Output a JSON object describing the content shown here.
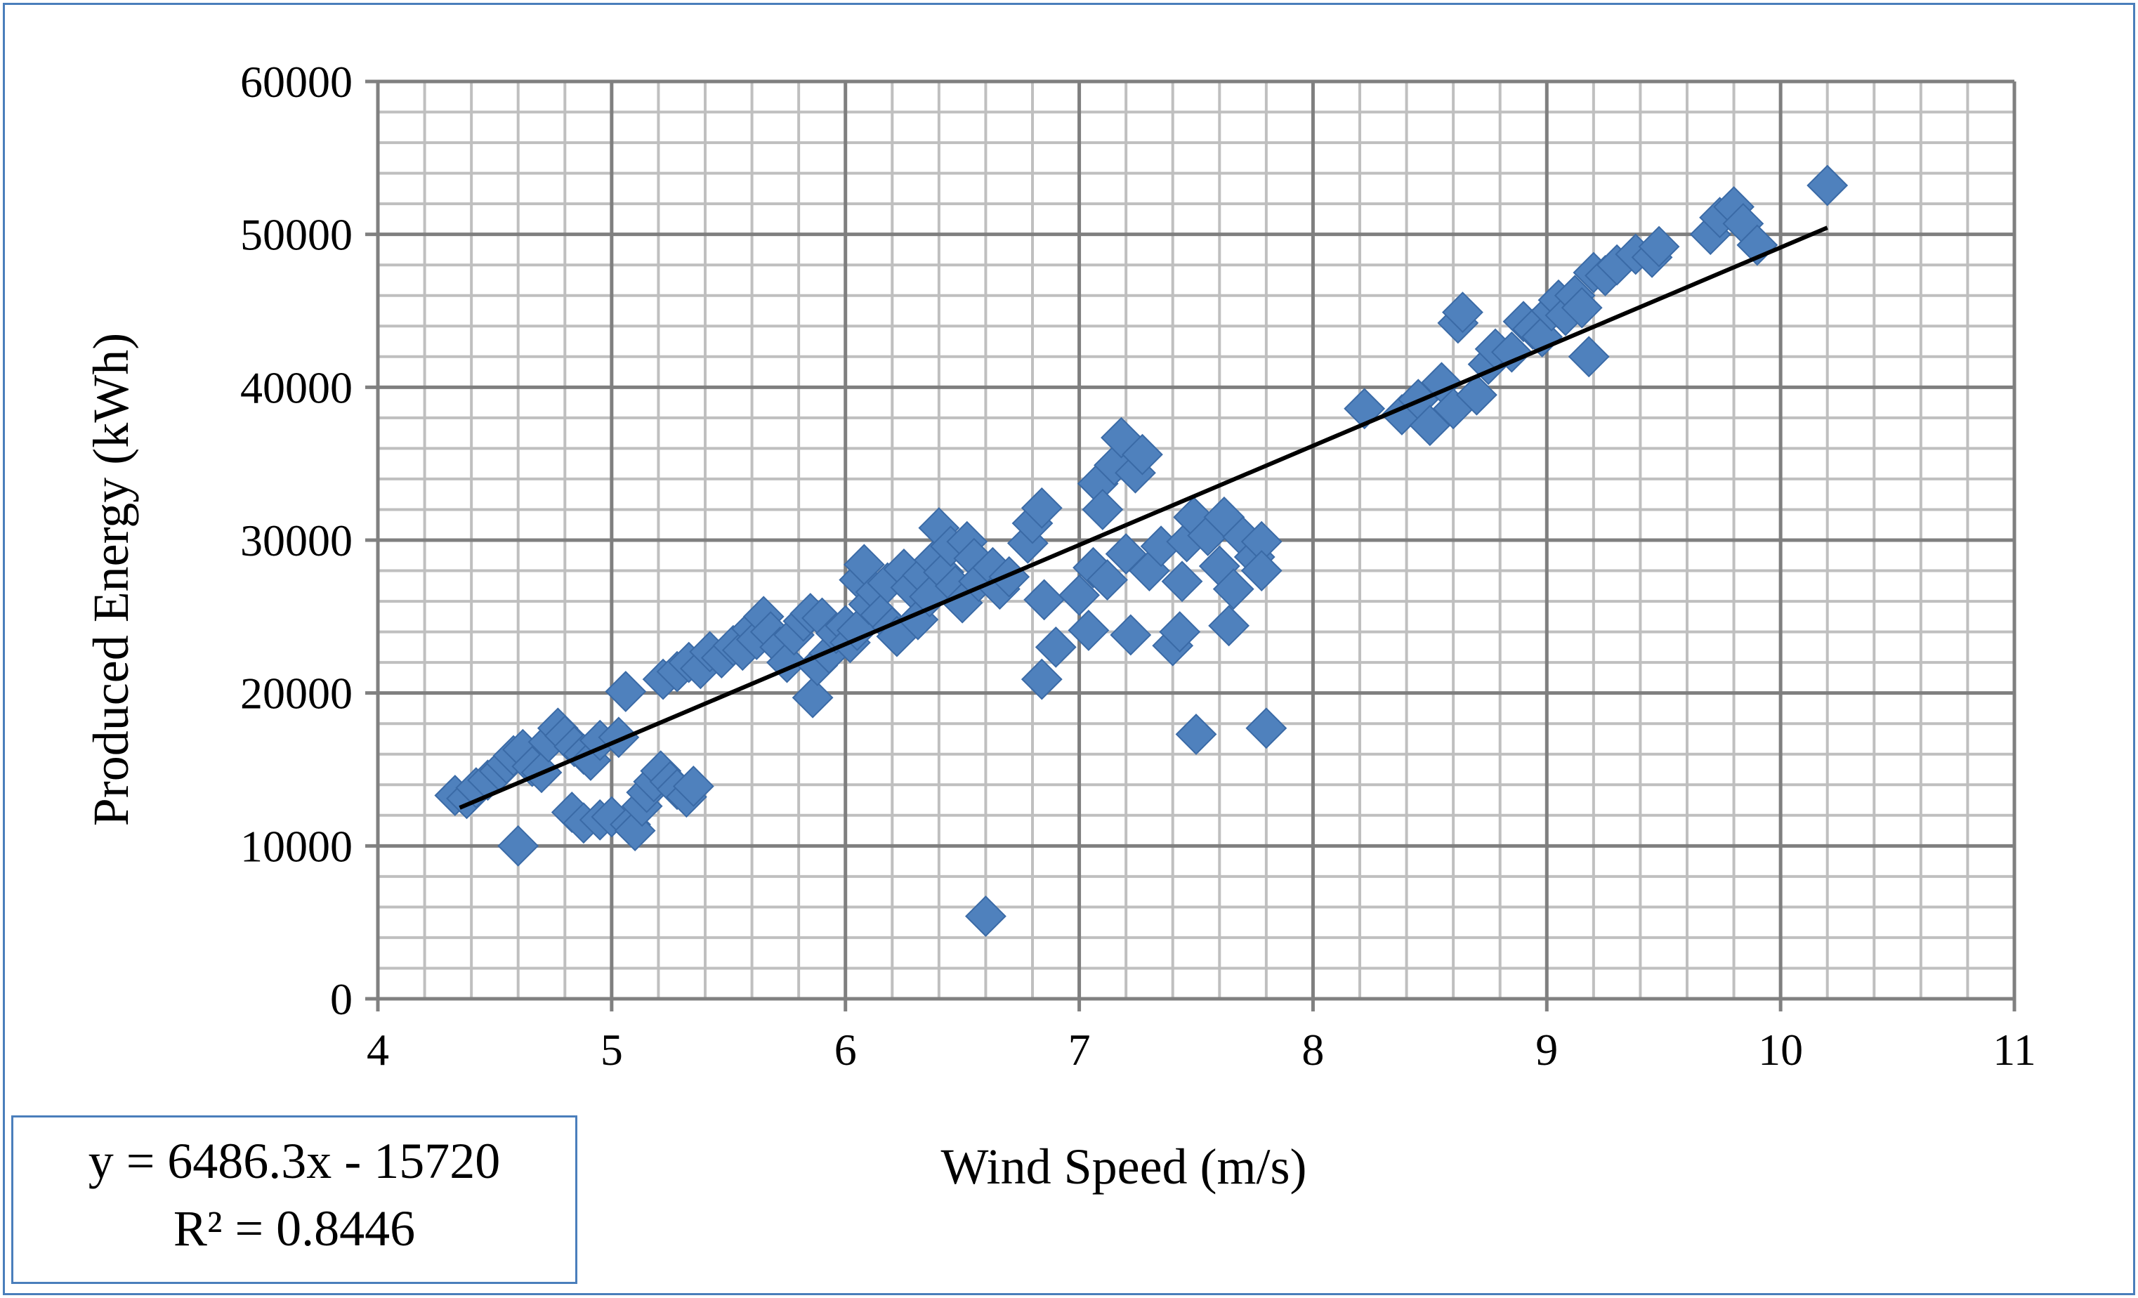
{
  "chart_data": {
    "type": "scatter",
    "xlabel": "Wind Speed (m/s)",
    "ylabel": "Produced Energy (kWh)",
    "xlim": [
      4,
      11
    ],
    "ylim": [
      0,
      60000
    ],
    "x_ticks": [
      4,
      5,
      6,
      7,
      8,
      9,
      10,
      11
    ],
    "y_ticks": [
      0,
      10000,
      20000,
      30000,
      40000,
      50000,
      60000
    ],
    "grid": "major and minor gridlines",
    "marker": "diamond",
    "marker_color": "#4f81bd",
    "trendline_color": "#000000",
    "grid_major_color": "#7f7f7f",
    "grid_minor_color": "#bfbfbf",
    "trendline": {
      "equation": "y = 6486.3x - 15720",
      "r_squared": "R² = 0.8446",
      "slope": 6486.3,
      "intercept": -15720,
      "x_range": [
        4.35,
        10.2
      ]
    },
    "points": [
      [
        4.33,
        13300
      ],
      [
        4.38,
        13100
      ],
      [
        4.42,
        13800
      ],
      [
        4.47,
        14300
      ],
      [
        4.52,
        14900
      ],
      [
        4.55,
        15400
      ],
      [
        4.58,
        15900
      ],
      [
        4.62,
        16300
      ],
      [
        4.66,
        15200
      ],
      [
        4.7,
        14800
      ],
      [
        4.73,
        16800
      ],
      [
        4.77,
        17700
      ],
      [
        4.8,
        17200
      ],
      [
        4.84,
        16500
      ],
      [
        4.88,
        16000
      ],
      [
        4.91,
        15600
      ],
      [
        4.95,
        16900
      ],
      [
        4.6,
        10000
      ],
      [
        4.83,
        12200
      ],
      [
        4.88,
        11500
      ],
      [
        4.95,
        11700
      ],
      [
        5.0,
        11900
      ],
      [
        5.03,
        17100
      ],
      [
        5.06,
        20100
      ],
      [
        5.08,
        11400
      ],
      [
        5.1,
        11000
      ],
      [
        5.13,
        12600
      ],
      [
        5.15,
        13500
      ],
      [
        5.18,
        14200
      ],
      [
        5.21,
        14900
      ],
      [
        5.25,
        14200
      ],
      [
        5.28,
        13700
      ],
      [
        5.32,
        13200
      ],
      [
        5.35,
        13900
      ],
      [
        5.22,
        20900
      ],
      [
        5.28,
        21400
      ],
      [
        5.33,
        22000
      ],
      [
        5.38,
        21600
      ],
      [
        5.42,
        22700
      ],
      [
        5.47,
        22300
      ],
      [
        5.52,
        23100
      ],
      [
        5.56,
        22800
      ],
      [
        5.6,
        24200
      ],
      [
        5.62,
        23500
      ],
      [
        5.65,
        25000
      ],
      [
        5.68,
        24000
      ],
      [
        5.72,
        23000
      ],
      [
        5.75,
        22000
      ],
      [
        5.78,
        23800
      ],
      [
        5.82,
        24700
      ],
      [
        5.85,
        25200
      ],
      [
        5.86,
        19700
      ],
      [
        5.88,
        21800
      ],
      [
        5.9,
        24900
      ],
      [
        5.93,
        22600
      ],
      [
        5.96,
        23900
      ],
      [
        6.0,
        24400
      ],
      [
        6.02,
        23300
      ],
      [
        6.05,
        24100
      ],
      [
        6.06,
        27400
      ],
      [
        6.08,
        28400
      ],
      [
        6.1,
        25800
      ],
      [
        6.13,
        26600
      ],
      [
        6.15,
        25100
      ],
      [
        6.18,
        27200
      ],
      [
        6.2,
        24300
      ],
      [
        6.22,
        23700
      ],
      [
        6.25,
        28100
      ],
      [
        6.28,
        26900
      ],
      [
        6.31,
        24800
      ],
      [
        6.33,
        27700
      ],
      [
        6.36,
        26300
      ],
      [
        6.38,
        28700
      ],
      [
        6.4,
        30800
      ],
      [
        6.42,
        27900
      ],
      [
        6.45,
        29600
      ],
      [
        6.47,
        27000
      ],
      [
        6.5,
        25900
      ],
      [
        6.52,
        29900
      ],
      [
        6.55,
        28800
      ],
      [
        6.57,
        27300
      ],
      [
        6.6,
        5400
      ],
      [
        6.63,
        28200
      ],
      [
        6.66,
        26800
      ],
      [
        6.7,
        27600
      ],
      [
        6.78,
        29800
      ],
      [
        6.8,
        31100
      ],
      [
        6.84,
        32100
      ],
      [
        6.84,
        20900
      ],
      [
        6.85,
        26100
      ],
      [
        6.9,
        23000
      ],
      [
        7.0,
        26400
      ],
      [
        7.04,
        24100
      ],
      [
        7.06,
        28200
      ],
      [
        7.08,
        33700
      ],
      [
        7.1,
        32000
      ],
      [
        7.12,
        27400
      ],
      [
        7.15,
        34900
      ],
      [
        7.18,
        36700
      ],
      [
        7.2,
        29100
      ],
      [
        7.22,
        23800
      ],
      [
        7.24,
        34400
      ],
      [
        7.27,
        35600
      ],
      [
        7.3,
        28000
      ],
      [
        7.35,
        29600
      ],
      [
        7.4,
        23100
      ],
      [
        7.43,
        24000
      ],
      [
        7.44,
        27300
      ],
      [
        7.46,
        29900
      ],
      [
        7.49,
        31500
      ],
      [
        7.5,
        17300
      ],
      [
        7.55,
        30300
      ],
      [
        7.6,
        28300
      ],
      [
        7.62,
        31500
      ],
      [
        7.64,
        24400
      ],
      [
        7.66,
        26800
      ],
      [
        7.7,
        30200
      ],
      [
        7.75,
        28900
      ],
      [
        7.78,
        29900
      ],
      [
        7.8,
        17700
      ],
      [
        7.78,
        28000
      ],
      [
        8.22,
        38600
      ],
      [
        8.38,
        38200
      ],
      [
        8.45,
        39200
      ],
      [
        8.5,
        37500
      ],
      [
        8.55,
        40300
      ],
      [
        8.6,
        38600
      ],
      [
        8.62,
        44200
      ],
      [
        8.64,
        44900
      ],
      [
        8.7,
        39500
      ],
      [
        8.75,
        41500
      ],
      [
        8.78,
        42500
      ],
      [
        8.85,
        42300
      ],
      [
        8.9,
        44300
      ],
      [
        8.94,
        43800
      ],
      [
        8.98,
        43300
      ],
      [
        9.02,
        45000
      ],
      [
        9.05,
        45700
      ],
      [
        9.08,
        44700
      ],
      [
        9.12,
        46000
      ],
      [
        9.15,
        45200
      ],
      [
        9.18,
        42000
      ],
      [
        9.2,
        47500
      ],
      [
        9.25,
        47300
      ],
      [
        9.3,
        48000
      ],
      [
        9.38,
        48700
      ],
      [
        9.45,
        48500
      ],
      [
        9.48,
        49200
      ],
      [
        9.7,
        50000
      ],
      [
        9.74,
        51100
      ],
      [
        9.8,
        51800
      ],
      [
        9.84,
        50700
      ],
      [
        9.9,
        49300
      ],
      [
        10.2,
        53200
      ]
    ]
  },
  "equation_box": {
    "equation": "y = 6486.3x - 15720",
    "r_squared": "R² = 0.8446"
  }
}
